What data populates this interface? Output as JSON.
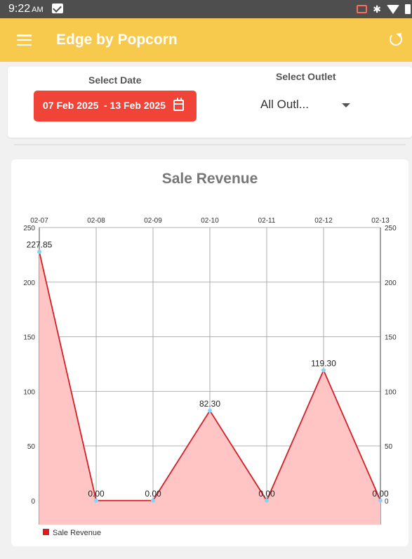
{
  "status_bar": {
    "time": "9:22",
    "ampm": "AM"
  },
  "app_bar": {
    "title": "Edge by Popcorn"
  },
  "filters": {
    "date_label": "Select Date",
    "date_from": "07 Feb 2025",
    "date_to": "- 13 Feb 2025",
    "outlet_label": "Select Outlet",
    "outlet_value": "All Outl..."
  },
  "chart_data": {
    "type": "area",
    "title": "Sale Revenue",
    "categories": [
      "02-07",
      "02-08",
      "02-09",
      "02-10",
      "02-11",
      "02-12",
      "02-13"
    ],
    "series": [
      {
        "name": "Sale Revenue",
        "values": [
          227.85,
          0.0,
          0.0,
          82.3,
          0.0,
          119.3,
          0.0
        ],
        "labels": [
          "227.85",
          "0.00",
          "0.00",
          "82.30",
          "0.00",
          "119.30",
          "0.00"
        ]
      }
    ],
    "y_ticks": [
      0,
      50,
      100,
      150,
      200,
      250
    ],
    "ylim": [
      -22,
      250
    ],
    "grid": true,
    "legend_position": "bottom-left",
    "colors": {
      "line": "#d32027",
      "fill": "#ffc4c4",
      "point": "#8ad3f0",
      "legend": "#e01b1b"
    }
  }
}
